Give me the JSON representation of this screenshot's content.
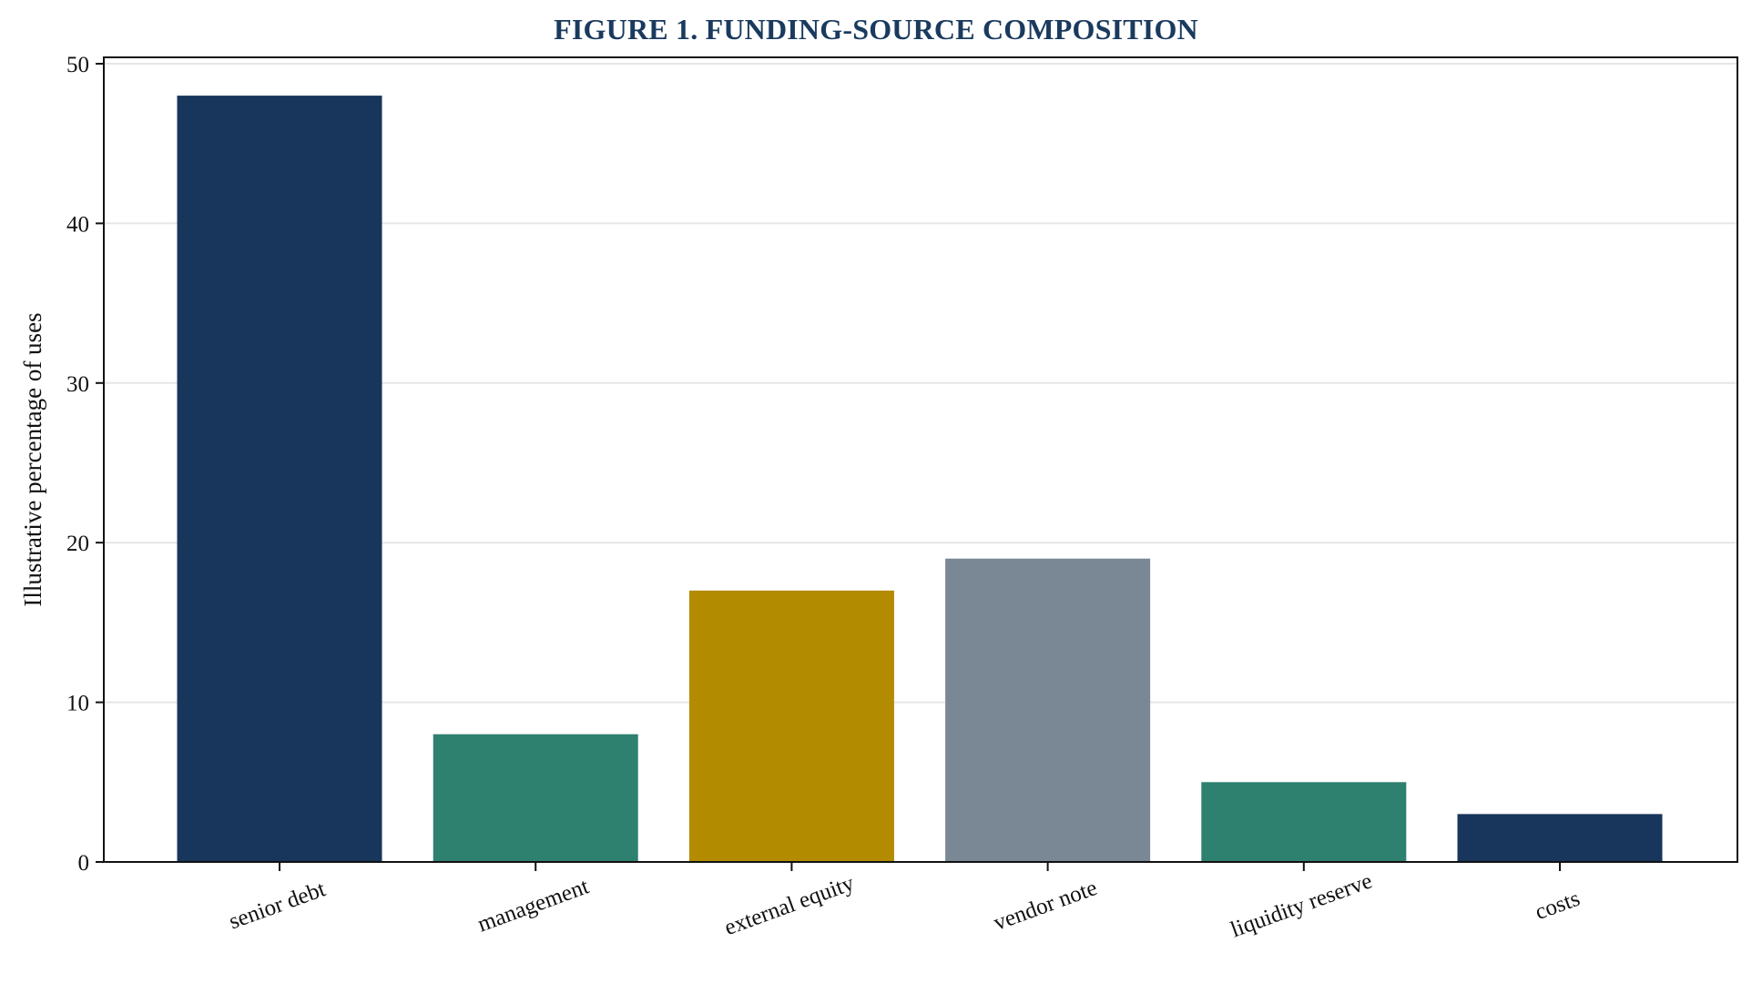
{
  "chart_data": {
    "type": "bar",
    "title": "FIGURE 1. FUNDING-SOURCE COMPOSITION",
    "xlabel": "",
    "ylabel": "Illustrative percentage of uses",
    "categories": [
      "senior debt",
      "management",
      "external equity",
      "vendor note",
      "liquidity reserve",
      "costs"
    ],
    "values": [
      48,
      8,
      17,
      19,
      5,
      3
    ],
    "colors": [
      "#18365b",
      "#2e806f",
      "#b38b00",
      "#7a8896",
      "#2e806f",
      "#18365b"
    ],
    "ylim": [
      0,
      50
    ],
    "yticks": [
      0,
      10,
      20,
      30,
      40,
      50
    ],
    "grid": "y",
    "legend": "none"
  }
}
